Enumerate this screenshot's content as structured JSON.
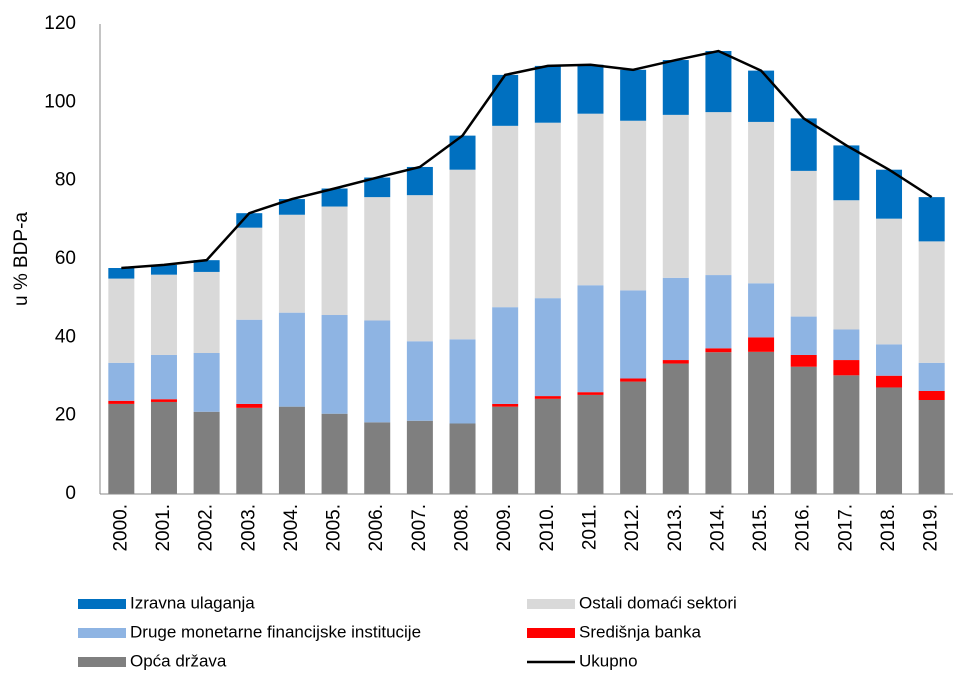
{
  "chart_data": {
    "type": "stacked-bar-line",
    "y_label": "u % BDP-a",
    "categories": [
      "2000.",
      "2001.",
      "2002.",
      "2003.",
      "2004.",
      "2005.",
      "2006.",
      "2007.",
      "2008.",
      "2009.",
      "2010.",
      "2011.",
      "2012.",
      "2013.",
      "2014.",
      "2015.",
      "2016.",
      "2017.",
      "2018.",
      "2019."
    ],
    "ylim": [
      0,
      120
    ],
    "yticks": [
      0,
      20,
      40,
      60,
      80,
      100,
      120
    ],
    "grid": false,
    "series": [
      {
        "name": "Opća država",
        "color": "#7f7f7f",
        "values": [
          23,
          23.5,
          21,
          22,
          22.3,
          20.5,
          18.3,
          18.7,
          18,
          22.3,
          24.3,
          25.3,
          28.7,
          33.3,
          36.2,
          36.3,
          32.5,
          30.3,
          27.2,
          24
        ]
      },
      {
        "name": "Središnja banka",
        "color": "#ff0000",
        "values": [
          0.8,
          0.7,
          0,
          1,
          0,
          0,
          0,
          0,
          0,
          0.7,
          0.7,
          0.7,
          0.8,
          0.9,
          1,
          3.7,
          3,
          3.9,
          3,
          2.3
        ]
      },
      {
        "name": "Druge monetarne financijske institucije",
        "color": "#8eb4e3",
        "values": [
          9.7,
          11.3,
          15,
          21.5,
          24,
          25.2,
          26,
          20.3,
          21.5,
          24.7,
          25,
          27.3,
          22.5,
          21,
          18.7,
          13.8,
          9.8,
          7.8,
          8,
          7.2
        ]
      },
      {
        "name": "Ostali domaći sektori",
        "color": "#d9d9d9",
        "values": [
          21.5,
          20.5,
          20.7,
          23.5,
          25,
          27.7,
          31.5,
          37.3,
          43.3,
          46.3,
          44.8,
          43.8,
          43.3,
          41.6,
          41.6,
          41.2,
          37.2,
          33,
          32.1,
          31
        ]
      },
      {
        "name": "Izravna ulaganja",
        "color": "#0070c0",
        "values": [
          2.7,
          2.5,
          3,
          3.7,
          4,
          4.6,
          5,
          7.2,
          8.7,
          13,
          14.5,
          12.5,
          13,
          14,
          15.6,
          13.1,
          13.4,
          14,
          12.5,
          11.3
        ]
      },
      {
        "name": "Ukupno",
        "color": "#000000",
        "kind": "line",
        "values": [
          57.7,
          58.5,
          59.7,
          71.7,
          75.3,
          78,
          80.8,
          83.5,
          91.5,
          107,
          109.3,
          109.6,
          108.3,
          110.8,
          113.1,
          108.1,
          95.9,
          89,
          82.8,
          75.8
        ]
      }
    ]
  }
}
